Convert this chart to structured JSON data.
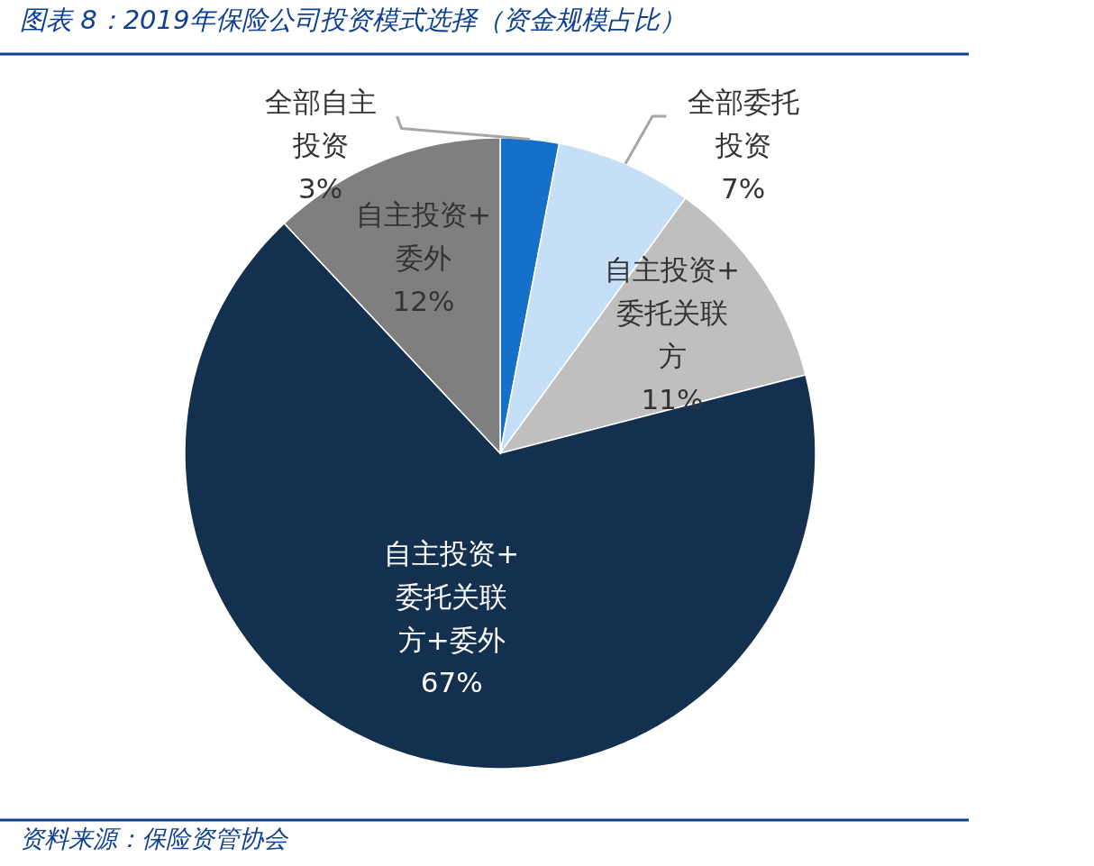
{
  "chart_data": {
    "type": "pie",
    "title": "图表 8：2019年保险公司投资模式选择（资金规模占比）",
    "categories": [
      "全部自主投资",
      "全部委托投资",
      "自主投资+委托关联方",
      "自主投资+委托关联方+委外",
      "自主投资+委外"
    ],
    "values": [
      3,
      7,
      11,
      67,
      12
    ],
    "colors": [
      "#1470c8",
      "#c5dff7",
      "#bfbfbf",
      "#14304f",
      "#7f7f7f"
    ],
    "value_labels": [
      "3%",
      "7%",
      "11%",
      "67%",
      "12%"
    ],
    "annotations": [
      "资料来源：保险资管协会"
    ]
  }
}
